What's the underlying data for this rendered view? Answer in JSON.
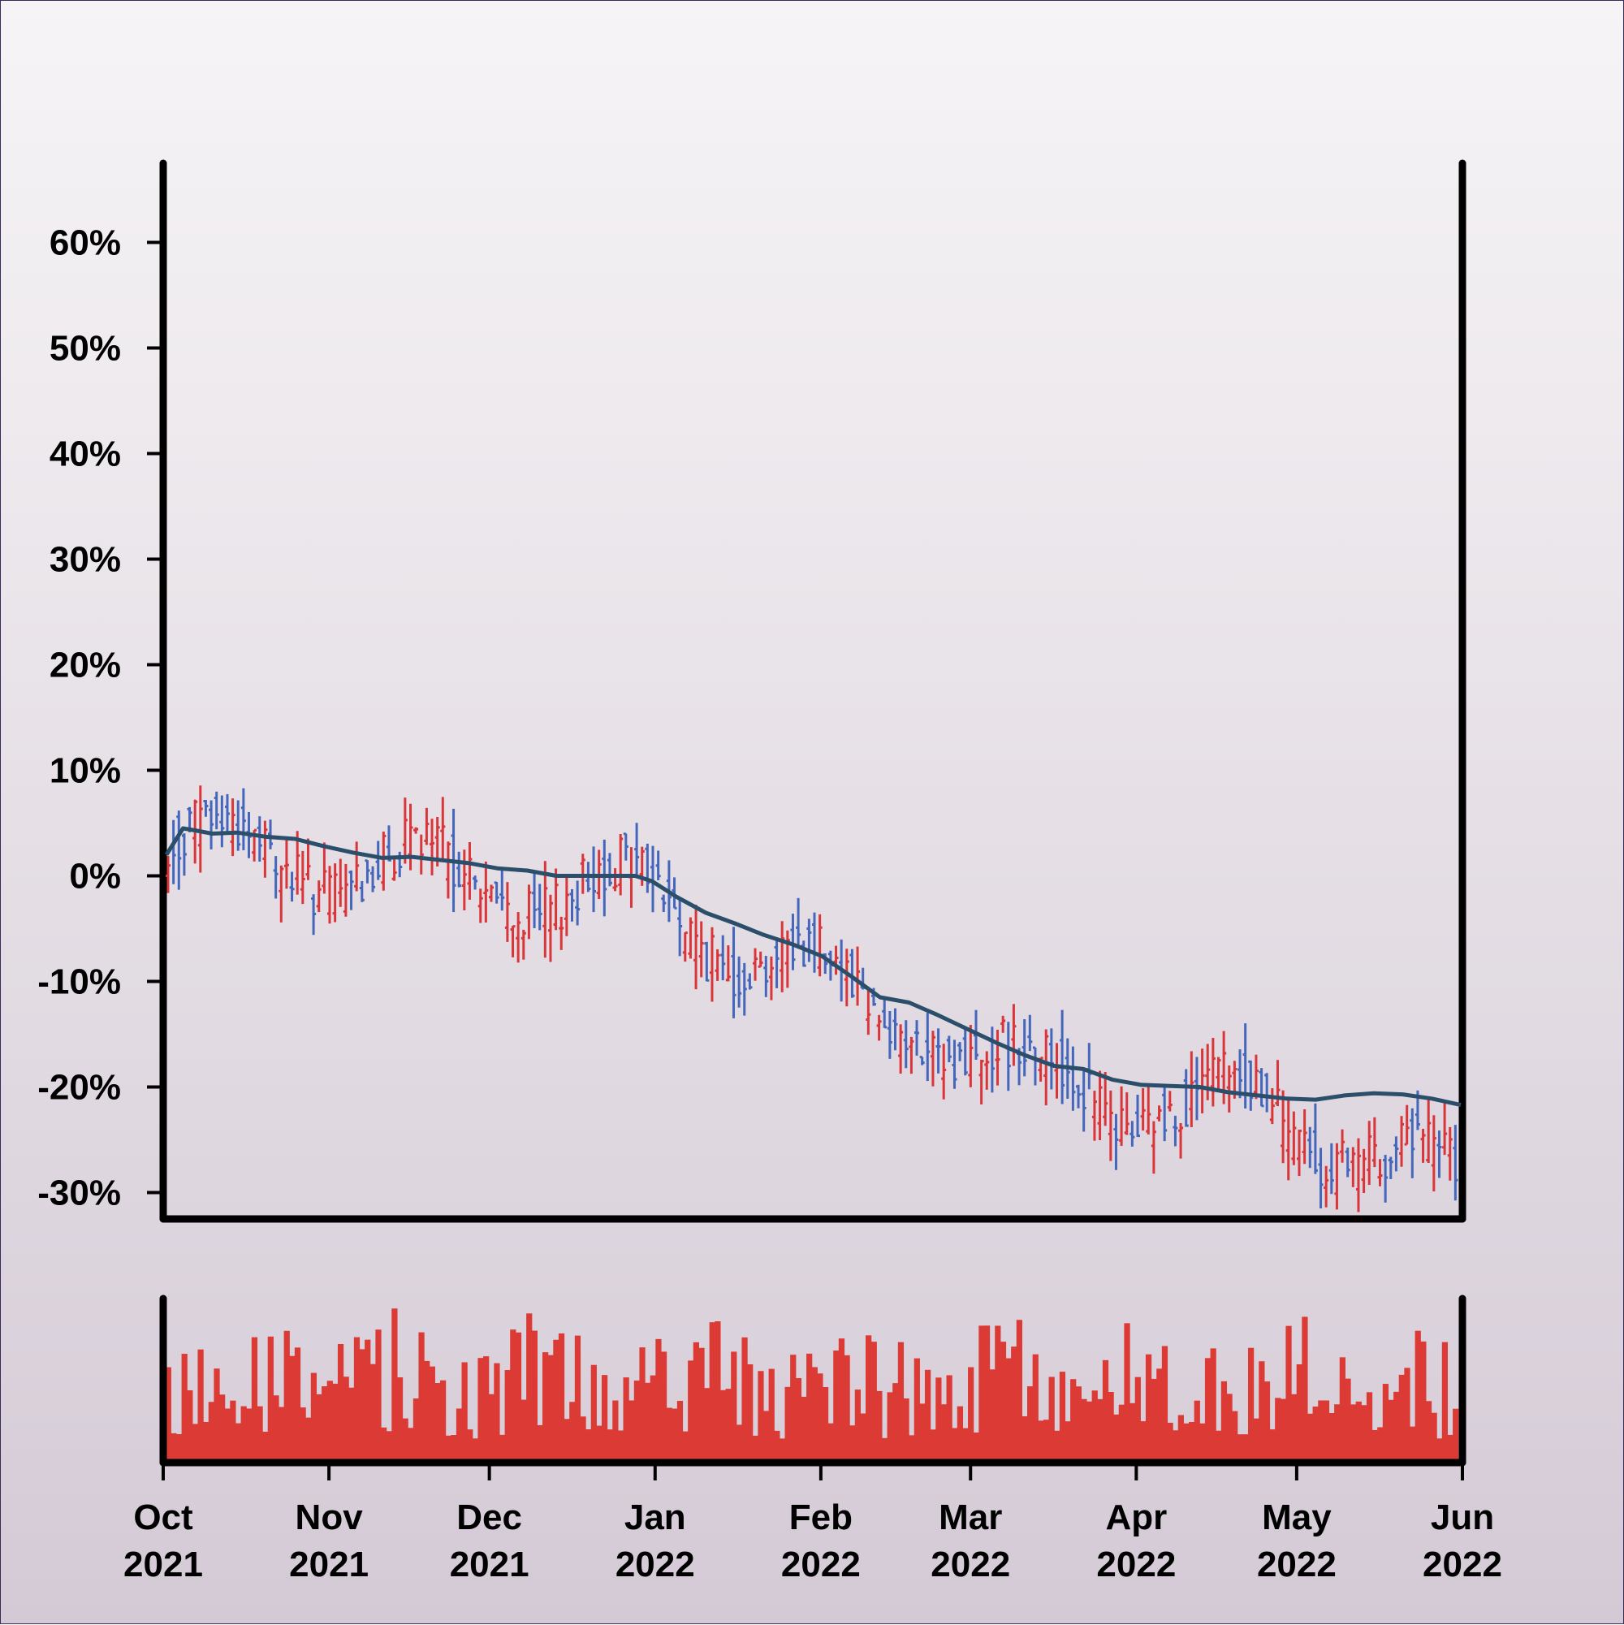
{
  "chart_data": {
    "type": "ohlc",
    "title": "",
    "xlabel": "",
    "ylabel": "",
    "y_unit": "%",
    "ylim": [
      -32.5,
      67.5
    ],
    "xlim": [
      "2021-10-01",
      "2022-06-01"
    ],
    "grid": false,
    "y_ticks": [
      {
        "value": 60,
        "label": "60%"
      },
      {
        "value": 50,
        "label": "50%"
      },
      {
        "value": 40,
        "label": "40%"
      },
      {
        "value": 30,
        "label": "30%"
      },
      {
        "value": 20,
        "label": "20%"
      },
      {
        "value": 10,
        "label": "10%"
      },
      {
        "value": 0,
        "label": "0%"
      },
      {
        "value": -10,
        "label": "-10%"
      },
      {
        "value": -20,
        "label": "-20%"
      },
      {
        "value": -30,
        "label": "-30%"
      }
    ],
    "x_ticks": [
      {
        "date": "2021-10-01",
        "month": "Oct",
        "year": "2021"
      },
      {
        "date": "2021-11-01",
        "month": "Nov",
        "year": "2021"
      },
      {
        "date": "2021-12-01",
        "month": "Dec",
        "year": "2021"
      },
      {
        "date": "2022-01-01",
        "month": "Jan",
        "year": "2022"
      },
      {
        "date": "2022-02-01",
        "month": "Feb",
        "year": "2022"
      },
      {
        "date": "2022-03-01",
        "month": "Mar",
        "year": "2022"
      },
      {
        "date": "2022-04-01",
        "month": "Apr",
        "year": "2022"
      },
      {
        "date": "2022-05-01",
        "month": "May",
        "year": "2022"
      },
      {
        "date": "2022-06-01",
        "month": "Jun",
        "year": "2022"
      }
    ],
    "trend_line": {
      "color": "#2b4f6a",
      "points": [
        [
          "2021-10-01",
          2.0
        ],
        [
          "2021-10-05",
          4.5
        ],
        [
          "2021-10-08",
          4.3
        ],
        [
          "2021-10-12",
          4.0
        ],
        [
          "2021-10-18",
          4.1
        ],
        [
          "2021-10-25",
          3.7
        ],
        [
          "2021-11-01",
          3.5
        ],
        [
          "2021-11-08",
          2.8
        ],
        [
          "2021-11-15",
          2.2
        ],
        [
          "2021-11-22",
          1.7
        ],
        [
          "2021-11-29",
          1.8
        ],
        [
          "2021-12-06",
          1.5
        ],
        [
          "2021-12-13",
          1.2
        ],
        [
          "2021-12-20",
          0.7
        ],
        [
          "2021-12-27",
          0.5
        ],
        [
          "2022-01-03",
          0.0
        ],
        [
          "2022-01-10",
          0.0
        ],
        [
          "2022-01-17",
          0.0
        ],
        [
          "2022-01-22",
          0.0
        ],
        [
          "2022-01-26",
          -0.5
        ],
        [
          "2022-02-01",
          -2.0
        ],
        [
          "2022-02-08",
          -3.5
        ],
        [
          "2022-02-15",
          -4.5
        ],
        [
          "2022-02-22",
          -5.6
        ],
        [
          "2022-03-01",
          -6.5
        ],
        [
          "2022-03-08",
          -7.6
        ],
        [
          "2022-03-15",
          -9.5
        ],
        [
          "2022-03-22",
          -11.5
        ],
        [
          "2022-03-29",
          -12.0
        ],
        [
          "2022-04-05",
          -13.2
        ],
        [
          "2022-04-12",
          -14.5
        ],
        [
          "2022-04-19",
          -15.8
        ],
        [
          "2022-04-26",
          -17.0
        ],
        [
          "2022-05-03",
          -18.0
        ],
        [
          "2022-05-10",
          -18.3
        ],
        [
          "2022-05-17",
          -19.3
        ],
        [
          "2022-05-24",
          -19.8
        ],
        [
          "2022-05-31",
          -19.9
        ],
        [
          "2022-06-07",
          -20.0
        ],
        [
          "2022-06-14",
          -20.5
        ],
        [
          "2022-06-21",
          -20.8
        ],
        [
          "2022-06-28",
          -21.1
        ],
        [
          "2022-07-05",
          -21.2
        ],
        [
          "2022-07-12",
          -20.8
        ],
        [
          "2022-07-19",
          -20.6
        ],
        [
          "2022-07-26",
          -20.7
        ],
        [
          "2022-08-02",
          -21.1
        ],
        [
          "2022-08-09",
          -21.7
        ]
      ]
    },
    "series": [
      {
        "name": "",
        "kind": "ohlc_up",
        "color": "#d9363a"
      },
      {
        "name": "",
        "kind": "ohlc_down",
        "color": "#4466bb"
      },
      {
        "name": "",
        "kind": "volume",
        "color": "#dc3a35"
      }
    ],
    "ohlc_note_generation": {
      "seed": 7,
      "count": 240
    }
  }
}
